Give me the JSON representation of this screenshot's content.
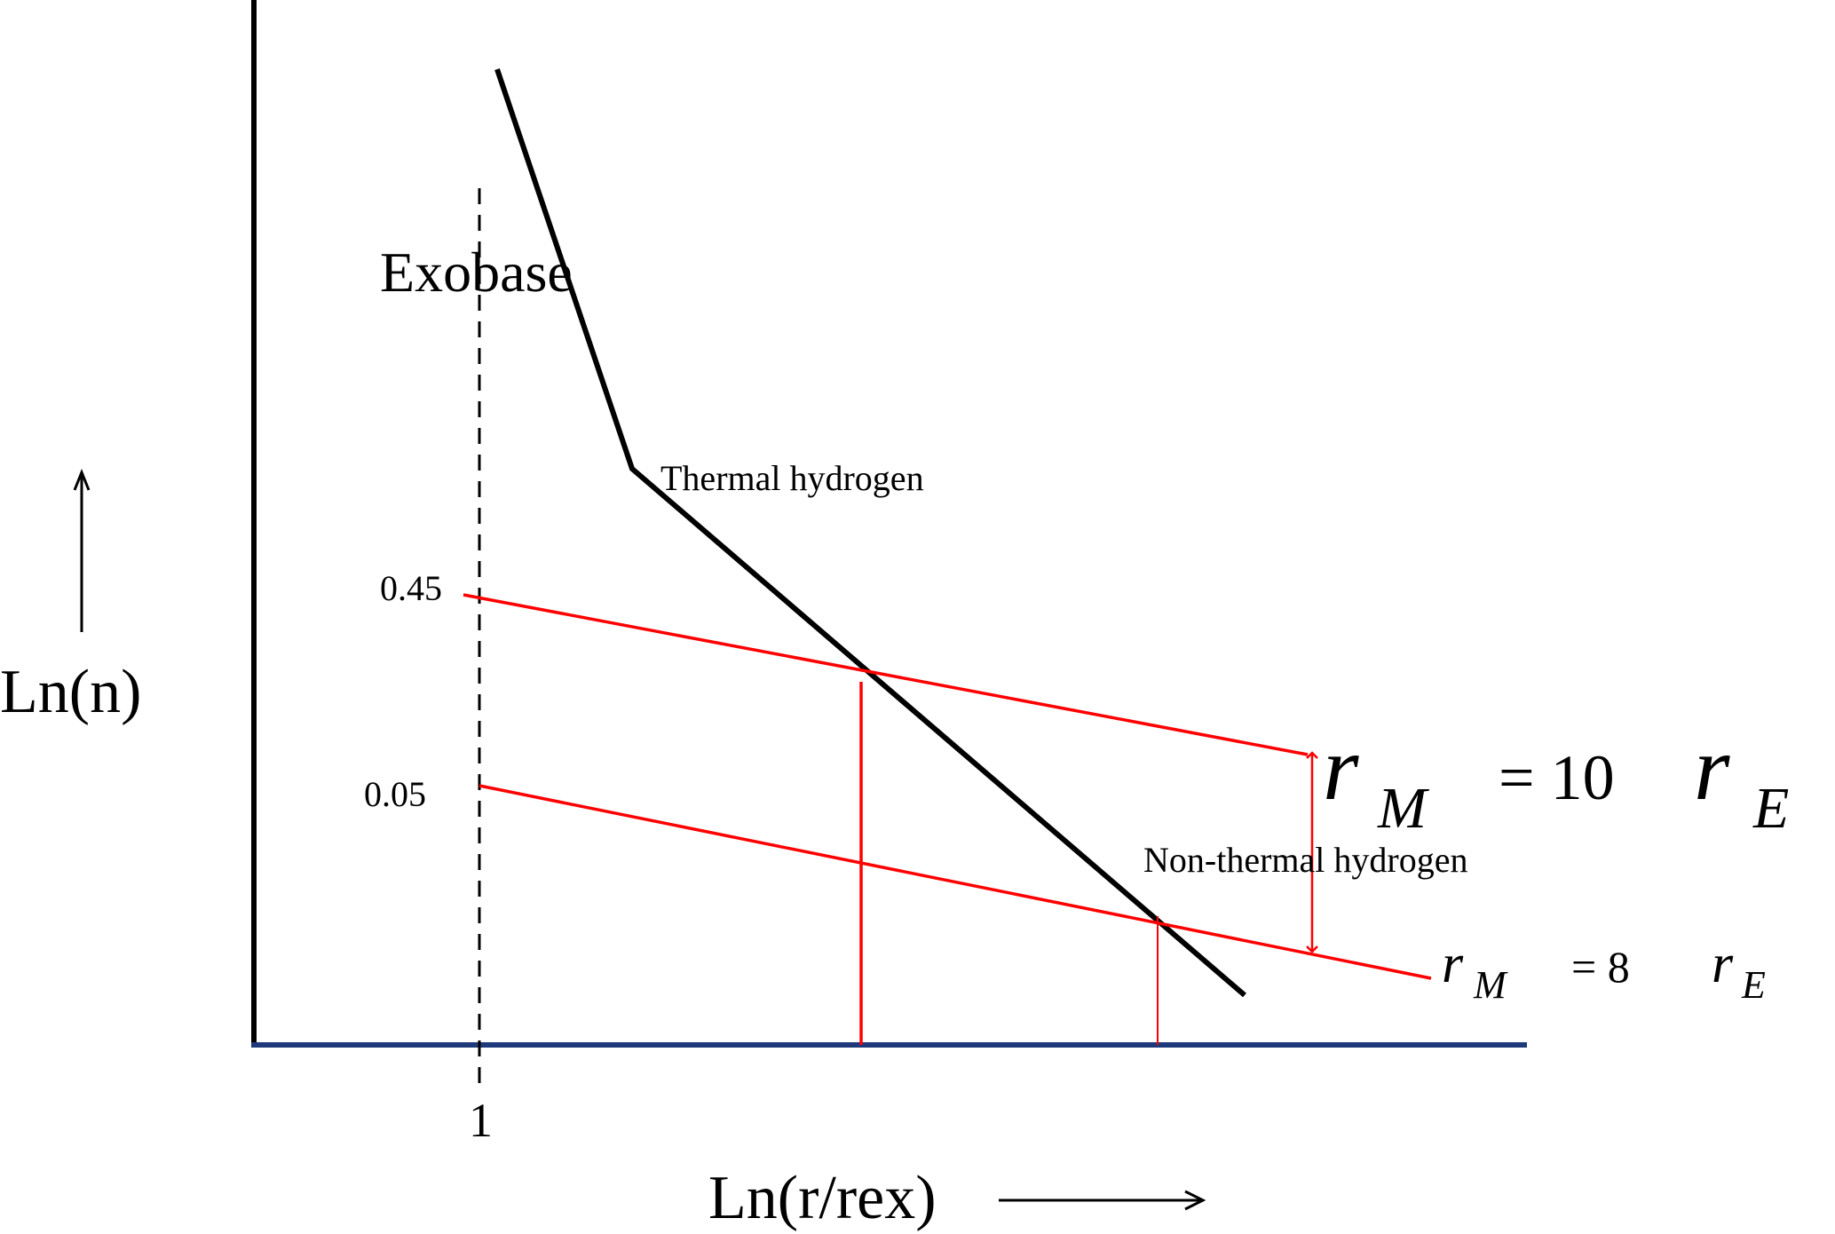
{
  "labels": {
    "y_axis": "Ln(n)",
    "x_axis": "Ln(r/rex)",
    "exobase": "Exobase",
    "thermal": "Thermal hydrogen",
    "non_thermal": "Non-thermal hydrogen",
    "tick_045": "0.45",
    "tick_005": "0.05",
    "tick_1": "1"
  },
  "equations": {
    "upper": {
      "var": "r",
      "sub": "M",
      "eq": "= 10",
      "var2": "r",
      "sub2": "E"
    },
    "lower": {
      "var": "r",
      "sub": "M",
      "eq": "= 8",
      "var2": "r",
      "sub2": "E"
    }
  },
  "colors": {
    "profile": "#000000",
    "red_lines": "#ff0000",
    "x_axis": "#1f3a7a",
    "y_axis": "#000000"
  }
}
